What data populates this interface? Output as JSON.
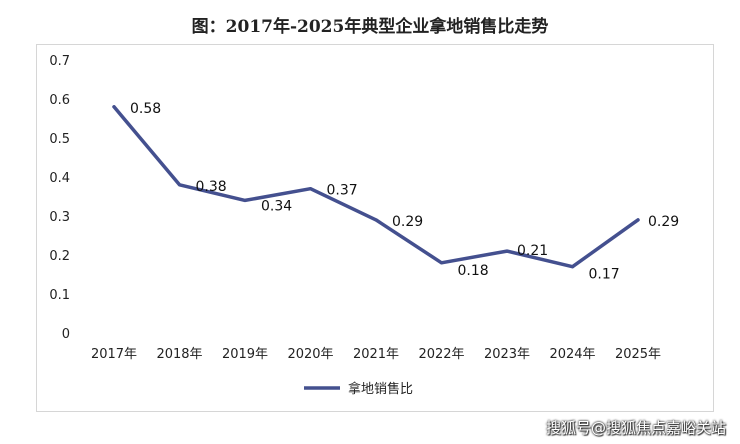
{
  "page": {
    "title": "图：2017年-2025年典型企业拿地销售比走势",
    "watermark": "搜狐号@搜狐焦点嘉峪关站"
  },
  "chart_data": {
    "type": "line",
    "title": "图：2017年-2025年典型企业拿地销售比走势",
    "categories": [
      "2017年",
      "2018年",
      "2019年",
      "2020年",
      "2021年",
      "2022年",
      "2023年",
      "2024年",
      "2025年"
    ],
    "series": [
      {
        "name": "拿地销售比",
        "values": [
          0.58,
          0.38,
          0.34,
          0.37,
          0.29,
          0.18,
          0.21,
          0.17,
          0.29
        ],
        "value_labels": [
          "0.58",
          "0.38",
          "0.34",
          "0.37",
          "0.29",
          "0.18",
          "0.21",
          "0.17",
          "0.29"
        ],
        "color": "#44508f"
      }
    ],
    "y_ticks": [
      "0",
      "0.1",
      "0.2",
      "0.3",
      "0.4",
      "0.5",
      "0.6",
      "0.7"
    ],
    "ylim": [
      0,
      0.7
    ],
    "grid": false,
    "legend": "bottom-center",
    "xlabel": "",
    "ylabel": ""
  }
}
